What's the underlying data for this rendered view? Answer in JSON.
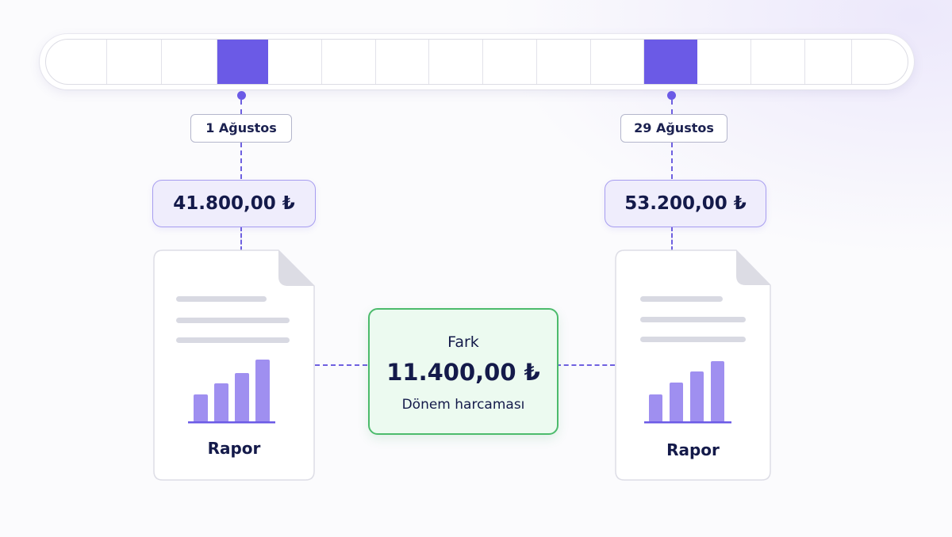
{
  "timeline": {
    "segment_count": 16,
    "highlighted_segments": [
      3,
      11
    ]
  },
  "left": {
    "date": "1 Ağustos",
    "amount": "41.800,00 ₺",
    "doc_label": "Rapor"
  },
  "right": {
    "date": "29 Ağustos",
    "amount": "53.200,00 ₺",
    "doc_label": "Rapor"
  },
  "difference": {
    "title": "Fark",
    "value": "11.400,00 ₺",
    "subtitle": "Dönem harcaması"
  },
  "colors": {
    "accent": "#6b5ae6",
    "amount_bg": "#efedfc",
    "diff_bg": "#ecfaf0",
    "diff_border": "#4cbb6c",
    "text": "#141a4a"
  },
  "icons": {
    "document": "document-report-icon",
    "bar_chart": "bar-chart-icon"
  }
}
